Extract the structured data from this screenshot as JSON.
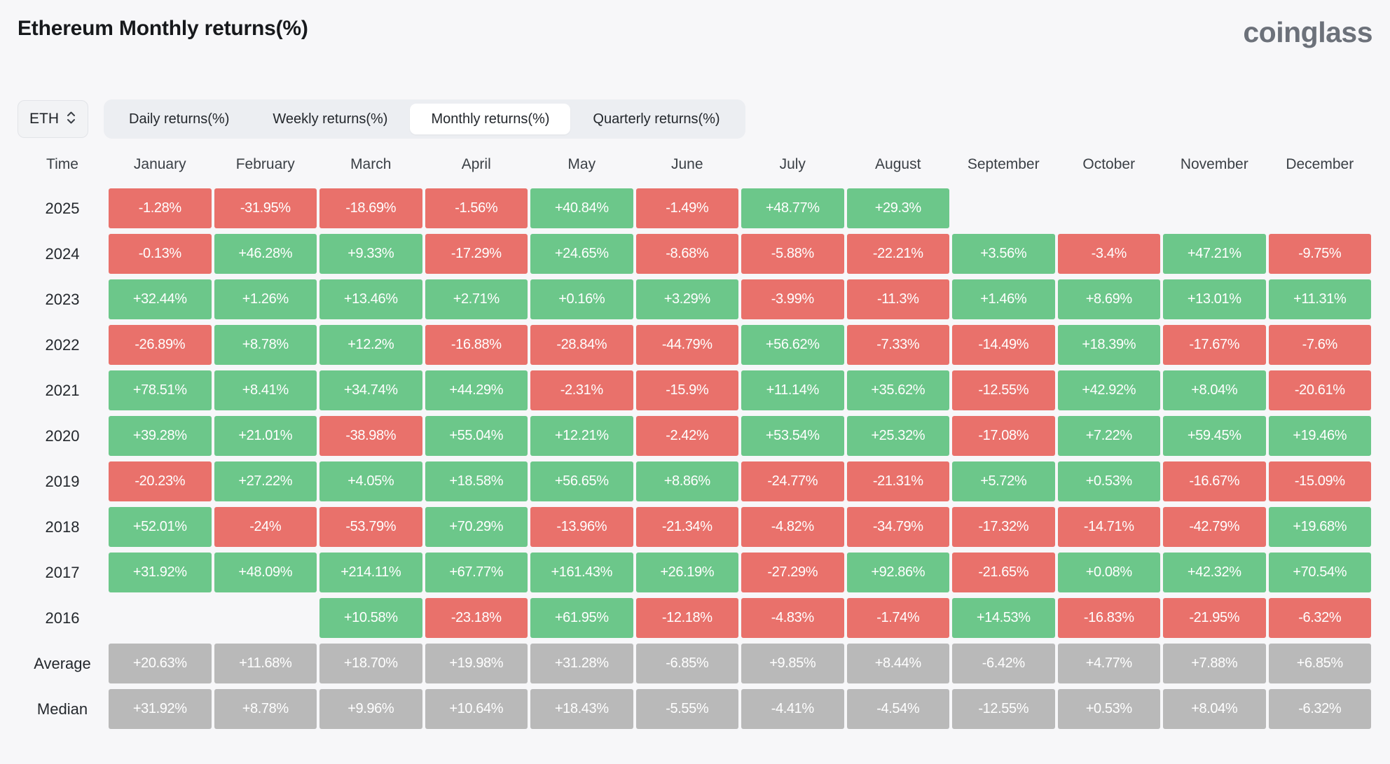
{
  "page": {
    "title": "Ethereum Monthly returns(%)",
    "brand": "coinglass"
  },
  "controls": {
    "symbol": "ETH",
    "tabs": [
      {
        "label": "Daily returns(%)",
        "active": false
      },
      {
        "label": "Weekly returns(%)",
        "active": false
      },
      {
        "label": "Monthly returns(%)",
        "active": true
      },
      {
        "label": "Quarterly returns(%)",
        "active": false
      }
    ]
  },
  "table": {
    "time_header": "Time",
    "months": [
      "January",
      "February",
      "March",
      "April",
      "May",
      "June",
      "July",
      "August",
      "September",
      "October",
      "November",
      "December"
    ],
    "rows": [
      {
        "label": "2025",
        "type": "year",
        "values": [
          "-1.28%",
          "-31.95%",
          "-18.69%",
          "-1.56%",
          "+40.84%",
          "-1.49%",
          "+48.77%",
          "+29.3%",
          "",
          "",
          "",
          ""
        ]
      },
      {
        "label": "2024",
        "type": "year",
        "values": [
          "-0.13%",
          "+46.28%",
          "+9.33%",
          "-17.29%",
          "+24.65%",
          "-8.68%",
          "-5.88%",
          "-22.21%",
          "+3.56%",
          "-3.4%",
          "+47.21%",
          "-9.75%"
        ]
      },
      {
        "label": "2023",
        "type": "year",
        "values": [
          "+32.44%",
          "+1.26%",
          "+13.46%",
          "+2.71%",
          "+0.16%",
          "+3.29%",
          "-3.99%",
          "-11.3%",
          "+1.46%",
          "+8.69%",
          "+13.01%",
          "+11.31%"
        ]
      },
      {
        "label": "2022",
        "type": "year",
        "values": [
          "-26.89%",
          "+8.78%",
          "+12.2%",
          "-16.88%",
          "-28.84%",
          "-44.79%",
          "+56.62%",
          "-7.33%",
          "-14.49%",
          "+18.39%",
          "-17.67%",
          "-7.6%"
        ]
      },
      {
        "label": "2021",
        "type": "year",
        "values": [
          "+78.51%",
          "+8.41%",
          "+34.74%",
          "+44.29%",
          "-2.31%",
          "-15.9%",
          "+11.14%",
          "+35.62%",
          "-12.55%",
          "+42.92%",
          "+8.04%",
          "-20.61%"
        ]
      },
      {
        "label": "2020",
        "type": "year",
        "values": [
          "+39.28%",
          "+21.01%",
          "-38.98%",
          "+55.04%",
          "+12.21%",
          "-2.42%",
          "+53.54%",
          "+25.32%",
          "-17.08%",
          "+7.22%",
          "+59.45%",
          "+19.46%"
        ]
      },
      {
        "label": "2019",
        "type": "year",
        "values": [
          "-20.23%",
          "+27.22%",
          "+4.05%",
          "+18.58%",
          "+56.65%",
          "+8.86%",
          "-24.77%",
          "-21.31%",
          "+5.72%",
          "+0.53%",
          "-16.67%",
          "-15.09%"
        ]
      },
      {
        "label": "2018",
        "type": "year",
        "values": [
          "+52.01%",
          "-24%",
          "-53.79%",
          "+70.29%",
          "-13.96%",
          "-21.34%",
          "-4.82%",
          "-34.79%",
          "-17.32%",
          "-14.71%",
          "-42.79%",
          "+19.68%"
        ]
      },
      {
        "label": "2017",
        "type": "year",
        "values": [
          "+31.92%",
          "+48.09%",
          "+214.11%",
          "+67.77%",
          "+161.43%",
          "+26.19%",
          "-27.29%",
          "+92.86%",
          "-21.65%",
          "+0.08%",
          "+42.32%",
          "+70.54%"
        ]
      },
      {
        "label": "2016",
        "type": "year",
        "values": [
          "",
          "",
          "+10.58%",
          "-23.18%",
          "+61.95%",
          "-12.18%",
          "-4.83%",
          "-1.74%",
          "+14.53%",
          "-16.83%",
          "-21.95%",
          "-6.32%"
        ]
      },
      {
        "label": "Average",
        "type": "summary",
        "values": [
          "+20.63%",
          "+11.68%",
          "+18.70%",
          "+19.98%",
          "+31.28%",
          "-6.85%",
          "+9.85%",
          "+8.44%",
          "-6.42%",
          "+4.77%",
          "+7.88%",
          "+6.85%"
        ]
      },
      {
        "label": "Median",
        "type": "summary",
        "values": [
          "+31.92%",
          "+8.78%",
          "+9.96%",
          "+10.64%",
          "+18.43%",
          "-5.55%",
          "-4.41%",
          "-4.54%",
          "-12.55%",
          "+0.53%",
          "+8.04%",
          "-6.32%"
        ]
      }
    ]
  },
  "icons": {
    "symbol_select": "chevron-up-down-icon"
  },
  "colors": {
    "positive": "#6cc78a",
    "negative": "#e9716b",
    "summary": "#b9b9b9"
  }
}
